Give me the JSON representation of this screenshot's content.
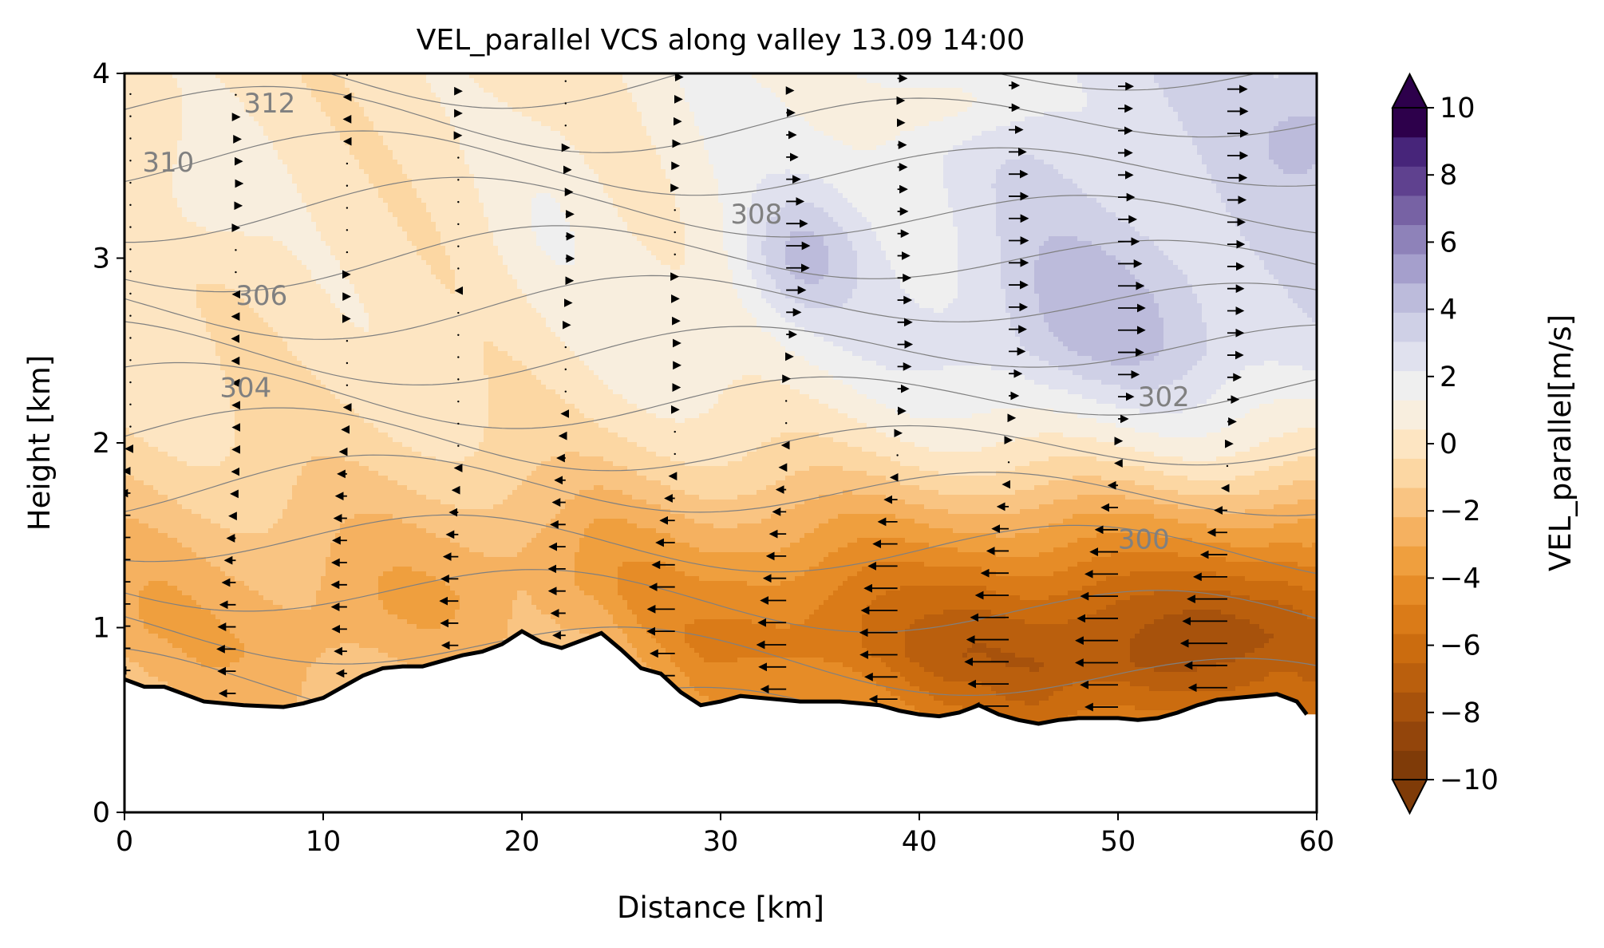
{
  "chart_data": {
    "type": "filled-contour-vector",
    "title": "VEL_parallel VCS along valley 13.09 14:00",
    "xlabel": "Distance [km]",
    "ylabel": "Height [km]",
    "xlim": [
      0,
      60
    ],
    "ylim": [
      0,
      4
    ],
    "x_ticks": [
      "0",
      "10",
      "20",
      "30",
      "40",
      "50",
      "60"
    ],
    "y_ticks": [
      "0",
      "1",
      "2",
      "3",
      "4"
    ],
    "colorbar": {
      "label": "VEL_parallel[m/s]",
      "range": [
        -10,
        10
      ],
      "extend": "both",
      "ticks": [
        "−10",
        "−8",
        "−6",
        "−4",
        "−2",
        "0",
        "2",
        "4",
        "6",
        "8",
        "10"
      ],
      "cmap": "PuOr",
      "colors_low_to_high": [
        "#7f3b08",
        "#93450b",
        "#a7520c",
        "#ba5f0d",
        "#cb6c0f",
        "#da7b18",
        "#e68c27",
        "#ef9f3e",
        "#f5b160",
        "#f9c482",
        "#fcd7a3",
        "#fde5c2",
        "#f8eede",
        "#efefef",
        "#e0e1ee",
        "#cfd0e6",
        "#bcbbdb",
        "#a59fcc",
        "#8e82b9",
        "#7762a4",
        "#5f418f",
        "#47257a",
        "#2d004b"
      ],
      "under_color": "#7f3b08",
      "over_color": "#2d004b"
    },
    "contour_labels": [
      {
        "value": "312",
        "x": 7.3,
        "y": 3.84
      },
      {
        "value": "310",
        "x": 2.2,
        "y": 3.52
      },
      {
        "value": "308",
        "x": 31.8,
        "y": 3.24
      },
      {
        "value": "306",
        "x": 6.9,
        "y": 2.8
      },
      {
        "value": "304",
        "x": 6.1,
        "y": 2.3
      },
      {
        "value": "302",
        "x": 52.3,
        "y": 2.25
      },
      {
        "value": "300",
        "x": 51.3,
        "y": 1.48
      }
    ],
    "terrain_km": {
      "x": [
        0,
        1,
        2,
        3,
        4,
        6,
        8,
        9,
        10,
        11,
        12,
        13,
        14,
        15,
        16,
        17,
        18,
        19,
        20,
        21,
        22,
        23,
        24,
        25,
        26,
        27,
        28,
        29,
        30,
        31,
        32,
        33,
        34,
        35,
        36,
        37,
        38,
        39,
        40,
        41,
        42,
        43,
        44,
        45,
        46,
        47,
        48,
        49,
        50,
        51,
        52,
        53,
        54,
        55,
        56,
        57,
        58,
        59,
        59.5
      ],
      "y": [
        0.72,
        0.68,
        0.68,
        0.64,
        0.6,
        0.58,
        0.57,
        0.59,
        0.62,
        0.68,
        0.74,
        0.78,
        0.79,
        0.79,
        0.82,
        0.85,
        0.87,
        0.91,
        0.98,
        0.92,
        0.89,
        0.93,
        0.97,
        0.88,
        0.78,
        0.75,
        0.65,
        0.58,
        0.6,
        0.63,
        0.62,
        0.61,
        0.6,
        0.6,
        0.6,
        0.59,
        0.58,
        0.55,
        0.53,
        0.52,
        0.54,
        0.58,
        0.53,
        0.5,
        0.48,
        0.5,
        0.51,
        0.51,
        0.51,
        0.5,
        0.51,
        0.54,
        0.58,
        0.61,
        0.62,
        0.63,
        0.64,
        0.6,
        0.53
      ]
    },
    "theta_contours_K": [
      298,
      299,
      300,
      301,
      302,
      303,
      304,
      305,
      306,
      307,
      308,
      309,
      310,
      311,
      312,
      313
    ],
    "wind_profile_columns_km": [
      0.3,
      5.6,
      11.2,
      16.8,
      22.2,
      27.7,
      33.3,
      38.9,
      44.5,
      50.0,
      55.5
    ],
    "wind_arrow_level_spacing_km": 0.12
  }
}
